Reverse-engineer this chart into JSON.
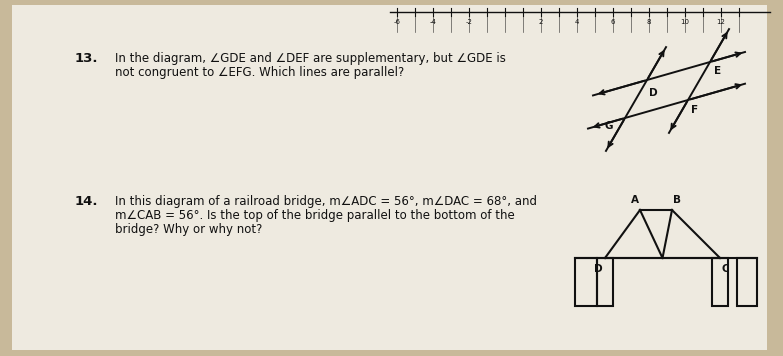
{
  "bg_color": "#c8b99a",
  "paper_color": "#eeeae0",
  "q13_number": "13.",
  "q13_text_line1": "In the diagram, ∠GDE and ∠DEF are supplementary, but ∠GDE is",
  "q13_text_line2": "not congruent to ∠EFG. Which lines are parallel?",
  "q14_number": "14.",
  "q14_text_line1": "In this diagram of a railroad bridge, m∠ADC = 56°, m∠DAC = 68°, and",
  "q14_text_line2": "m∠CAB = 56°. Is the top of the bridge parallel to the bottom of the",
  "q14_text_line3": "bridge? Why or why not?",
  "text_color": "#111111",
  "diagram_color": "#111111",
  "fontsize_number": 9.5,
  "fontsize_text": 8.5,
  "fontsize_label": 7.5
}
